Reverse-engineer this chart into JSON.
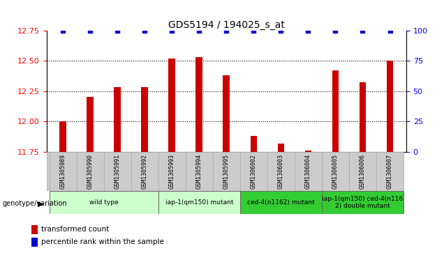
{
  "title": "GDS5194 / 194025_s_at",
  "samples": [
    "GSM1305989",
    "GSM1305990",
    "GSM1305991",
    "GSM1305992",
    "GSM1305993",
    "GSM1305994",
    "GSM1305995",
    "GSM1306002",
    "GSM1306003",
    "GSM1306004",
    "GSM1306005",
    "GSM1306006",
    "GSM1306007"
  ],
  "transformed_count": [
    12.0,
    12.2,
    12.28,
    12.28,
    12.52,
    12.53,
    12.38,
    11.88,
    11.82,
    11.76,
    12.42,
    12.32,
    12.5
  ],
  "percentile": [
    100,
    100,
    100,
    100,
    100,
    100,
    100,
    100,
    100,
    100,
    100,
    100,
    100
  ],
  "ylim_left": [
    11.75,
    12.75
  ],
  "ylim_right": [
    0,
    100
  ],
  "yticks_left": [
    11.75,
    12.0,
    12.25,
    12.5,
    12.75
  ],
  "yticks_right": [
    0,
    25,
    50,
    75,
    100
  ],
  "bar_color": "#cc0000",
  "dot_color": "#0000cc",
  "groups": [
    {
      "label": "wild type",
      "start": 0,
      "end": 3,
      "color": "#ccffcc"
    },
    {
      "label": "iap-1(qm150) mutant",
      "start": 4,
      "end": 6,
      "color": "#ccffcc"
    },
    {
      "label": "ced-4(n1162) mutant",
      "start": 7,
      "end": 9,
      "color": "#33cc33"
    },
    {
      "label": "iap-1(qm150) ced-4(n116\n2) double mutant",
      "start": 10,
      "end": 12,
      "color": "#33cc33"
    }
  ],
  "legend_label_bar": "transformed count",
  "legend_label_dot": "percentile rank within the sample",
  "genotype_label": "genotype/variation",
  "background_color": "#ffffff",
  "sample_label_bg": "#cccccc",
  "bar_width": 0.25
}
